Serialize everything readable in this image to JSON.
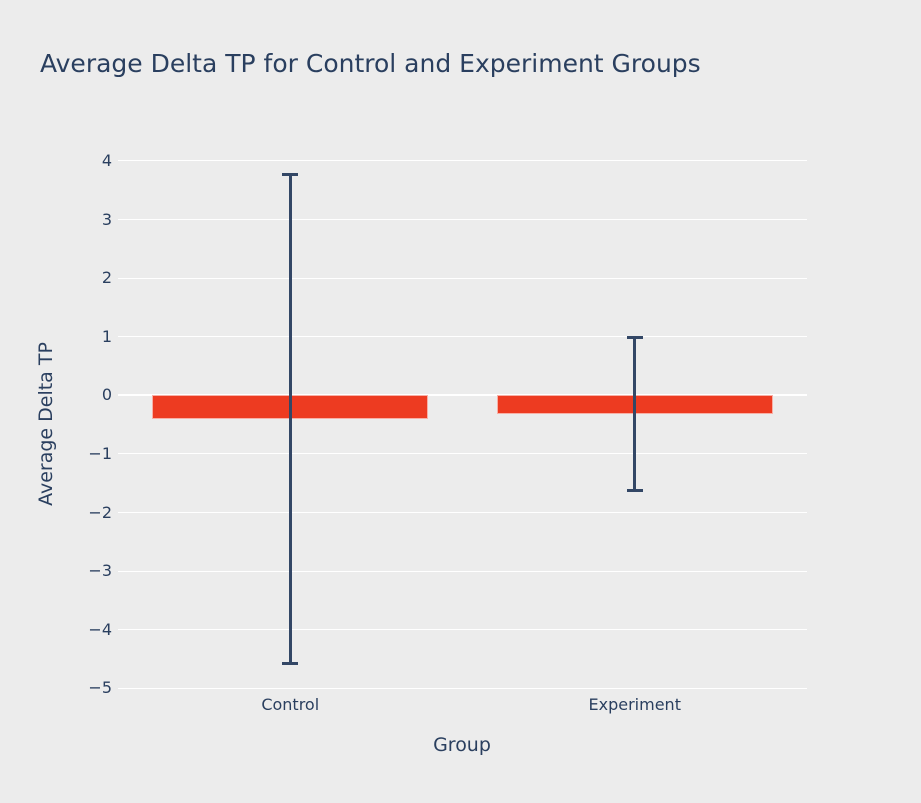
{
  "chart_data": {
    "type": "bar",
    "title": "Average Delta TP for Control and Experiment Groups",
    "xlabel": "Group",
    "ylabel": "Average Delta TP",
    "categories": [
      "Control",
      "Experiment"
    ],
    "values": [
      -0.4,
      -0.32
    ],
    "error_y": [
      4.17,
      1.3
    ],
    "yticks": [
      4,
      3,
      2,
      1,
      0,
      -1,
      -2,
      -3,
      -4,
      -5
    ],
    "ytick_labels": [
      "4",
      "3",
      "2",
      "1",
      "0",
      "−1",
      "−2",
      "−3",
      "−4",
      "−5"
    ],
    "ylim": [
      -5.2,
      4.25
    ],
    "grid": true,
    "legend": false
  },
  "colors": {
    "background": "#ececec",
    "text": "#2a3f5f",
    "bar": "#ed3b21",
    "error_bar": "#334766",
    "gridline": "#ffffff"
  }
}
